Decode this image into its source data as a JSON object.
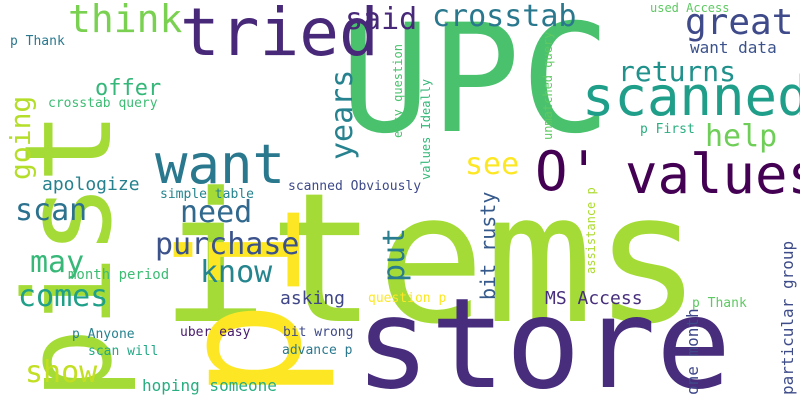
{
  "words": [
    {
      "id": "items",
      "text": "items",
      "color": "#a5db36"
    },
    {
      "id": "pist",
      "text": "pist",
      "color": "#a5db36"
    },
    {
      "id": "pi",
      "text": "pi",
      "color": "#fde725"
    },
    {
      "id": "upc",
      "text": "UPC",
      "color": "#4ac16d"
    },
    {
      "id": "store",
      "text": "store",
      "color": "#472d7b"
    },
    {
      "id": "tried",
      "text": "tried",
      "color": "#482878"
    },
    {
      "id": "scanned",
      "text": "scanned",
      "color": "#1f9e89"
    },
    {
      "id": "want",
      "text": "want",
      "color": "#2a788e"
    },
    {
      "id": "values",
      "text": "values",
      "color": "#440154"
    },
    {
      "id": "o",
      "text": "O'",
      "color": "#440154"
    },
    {
      "id": "think",
      "text": "think",
      "color": "#7ad151"
    },
    {
      "id": "said",
      "text": "said",
      "color": "#482878"
    },
    {
      "id": "crosstab",
      "text": "crosstab",
      "color": "#2a788e"
    },
    {
      "id": "great",
      "text": "great",
      "color": "#3e4a89"
    },
    {
      "id": "returns",
      "text": "returns",
      "color": "#21918c"
    },
    {
      "id": "want-data",
      "text": "want data",
      "color": "#3b528b"
    },
    {
      "id": "help",
      "text": "help",
      "color": "#6ece58"
    },
    {
      "id": "years",
      "text": "years",
      "color": "#26828e"
    },
    {
      "id": "offer",
      "text": "offer",
      "color": "#35b779"
    },
    {
      "id": "going",
      "text": "going",
      "color": "#b5de2b"
    },
    {
      "id": "see",
      "text": "see",
      "color": "#fde725"
    },
    {
      "id": "need",
      "text": "need",
      "color": "#31688e"
    },
    {
      "id": "purchase",
      "text": "purchase",
      "color": "#3b528b"
    },
    {
      "id": "scan",
      "text": "scan",
      "color": "#2c728e"
    },
    {
      "id": "apologize",
      "text": "apologize",
      "color": "#26828e"
    },
    {
      "id": "simple-table",
      "text": "simple table",
      "color": "#25848e"
    },
    {
      "id": "know",
      "text": "know",
      "color": "#25858e"
    },
    {
      "id": "put",
      "text": "put",
      "color": "#287c8e"
    },
    {
      "id": "may",
      "text": "may",
      "color": "#37b878"
    },
    {
      "id": "month-period",
      "text": "month period",
      "color": "#3dbc74"
    },
    {
      "id": "comes",
      "text": "comes",
      "color": "#1fa088"
    },
    {
      "id": "asking",
      "text": "asking",
      "color": "#3f4788"
    },
    {
      "id": "ms-access",
      "text": "MS Access",
      "color": "#472f7d"
    },
    {
      "id": "show",
      "text": "show",
      "color": "#c2df23"
    },
    {
      "id": "hoping",
      "text": "hoping someone",
      "color": "#27ad81"
    },
    {
      "id": "bit-rusty",
      "text": "bit rusty",
      "color": "#375a8c"
    },
    {
      "id": "one-month",
      "text": "one month",
      "color": "#3f4889"
    },
    {
      "id": "particular",
      "text": "particular group",
      "color": "#3e4c8a"
    },
    {
      "id": "used-access",
      "text": "used Access",
      "color": "#5ec962"
    },
    {
      "id": "p-thank-1",
      "text": "p Thank",
      "color": "#2a788e"
    },
    {
      "id": "crosstab-query",
      "text": "crosstab query",
      "color": "#3dbc74"
    },
    {
      "id": "easy-question",
      "text": "easy question",
      "color": "#4ac16d"
    },
    {
      "id": "values-ideally",
      "text": "values Ideally",
      "color": "#35b779"
    },
    {
      "id": "unmatched",
      "text": "unmatched query",
      "color": "#5ec962"
    },
    {
      "id": "p-first",
      "text": "p First",
      "color": "#29af7f"
    },
    {
      "id": "assistance",
      "text": "assistance p",
      "color": "#addc30"
    },
    {
      "id": "scanned-obv",
      "text": "scanned Obviously",
      "color": "#3e4989"
    },
    {
      "id": "question-p",
      "text": "question p",
      "color": "#fde725"
    },
    {
      "id": "p-anyone",
      "text": "p Anyone",
      "color": "#26828e"
    },
    {
      "id": "uber-easy",
      "text": "uber easy",
      "color": "#481b6d"
    },
    {
      "id": "bit-wrong",
      "text": "bit wrong",
      "color": "#3e4989"
    },
    {
      "id": "scan-will",
      "text": "scan will",
      "color": "#22a884"
    },
    {
      "id": "advance-p",
      "text": "advance p",
      "color": "#2a788e"
    },
    {
      "id": "p-thank-2",
      "text": "p Thank",
      "color": "#5ec962"
    }
  ]
}
